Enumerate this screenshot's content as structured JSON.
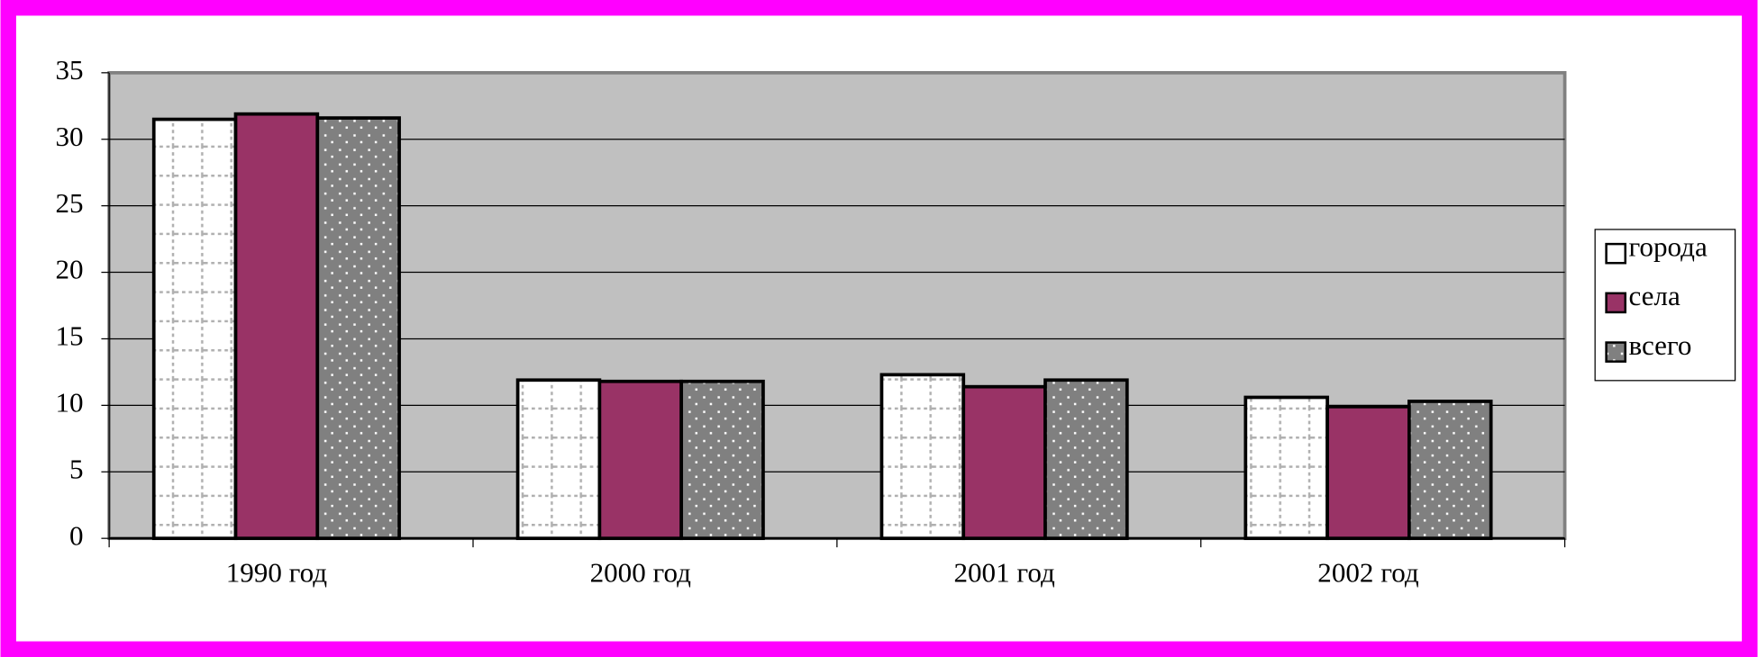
{
  "chart_data": {
    "type": "bar",
    "categories": [
      "1990 год",
      "2000 год",
      "2001 год",
      "2002 год"
    ],
    "series": [
      {
        "name": "города",
        "color": "#ffffff",
        "values": [
          31.5,
          11.9,
          12.3,
          10.6
        ]
      },
      {
        "name": "села",
        "color": "#993366",
        "values": [
          31.9,
          11.8,
          11.4,
          9.9
        ]
      },
      {
        "name": "всего",
        "color": "#808080",
        "values": [
          31.6,
          11.8,
          11.9,
          10.3
        ]
      }
    ],
    "ylim": [
      0,
      35
    ],
    "yticks": [
      0,
      5,
      10,
      15,
      20,
      25,
      30,
      35
    ],
    "grid": true,
    "legend": "right"
  }
}
